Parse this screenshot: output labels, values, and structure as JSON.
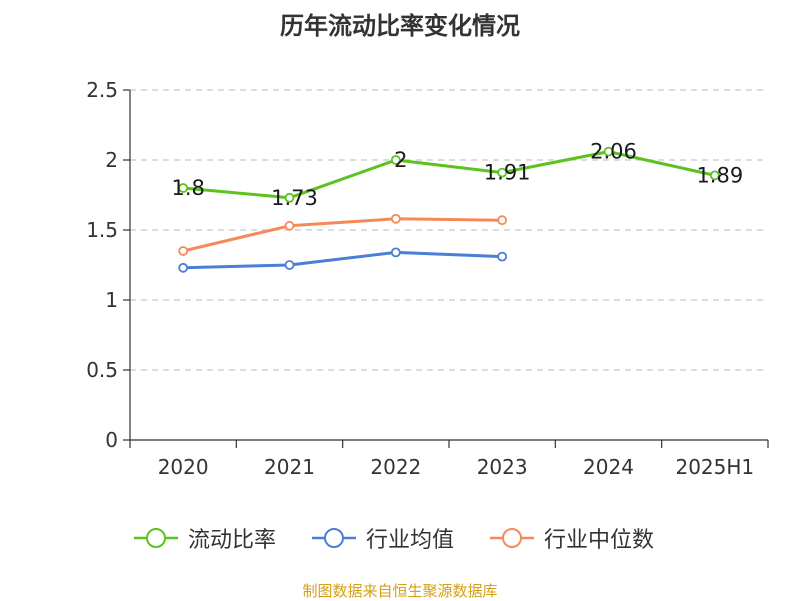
{
  "chart_data": {
    "type": "line",
    "title": "历年流动比率变化情况",
    "categories": [
      "2020",
      "2021",
      "2022",
      "2023",
      "2024",
      "2025H1"
    ],
    "ylim": [
      0,
      2.5
    ],
    "yticks": [
      "0",
      "0.5",
      "1",
      "1.5",
      "2",
      "2.5"
    ],
    "ytick_values": [
      0,
      0.5,
      1,
      1.5,
      2,
      2.5
    ],
    "grid": true,
    "legend_position": "bottom",
    "series": [
      {
        "name": "流动比率",
        "color": "#5bc21f",
        "values": [
          1.8,
          1.73,
          2,
          1.91,
          2.06,
          1.89
        ],
        "labels": [
          "1.8",
          "1.73",
          "2",
          "1.91",
          "2.06",
          "1.89"
        ],
        "show_labels": true
      },
      {
        "name": "行业均值",
        "color": "#4a7fd6",
        "values": [
          1.23,
          1.25,
          1.34,
          1.31,
          null,
          null
        ],
        "show_labels": false
      },
      {
        "name": "行业中位数",
        "color": "#f5895a",
        "values": [
          1.35,
          1.53,
          1.58,
          1.57,
          null,
          null
        ],
        "show_labels": false
      }
    ]
  },
  "source": "制图数据来自恒生聚源数据库"
}
